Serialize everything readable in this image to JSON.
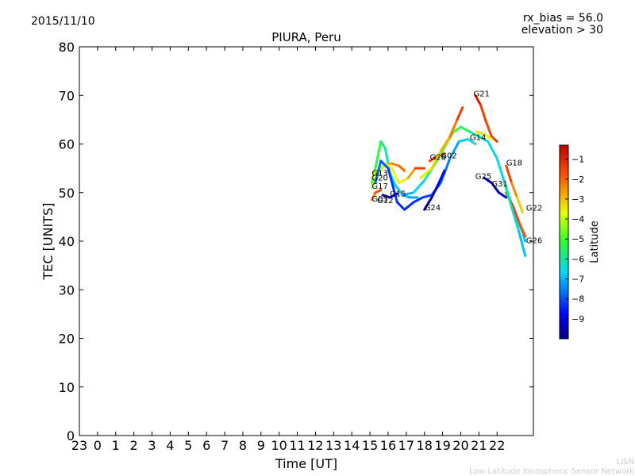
{
  "header": {
    "date": "2015/11/10",
    "rx_bias": "rx_bias = 56.0",
    "elevation": "elevation > 30"
  },
  "footer": {
    "line1": "LISN",
    "line2": "Low-Latitude Ionospheric Sensor Network"
  },
  "chart_data": {
    "type": "line",
    "title": "PIURA, Peru",
    "xlabel": "Time [UT]",
    "ylabel": "TEC [UNITS]",
    "x_ticks": [
      "23",
      "0",
      "1",
      "2",
      "3",
      "4",
      "5",
      "6",
      "7",
      "8",
      "9",
      "10",
      "11",
      "12",
      "13",
      "14",
      "15",
      "16",
      "17",
      "18",
      "19",
      "20",
      "21",
      "22"
    ],
    "xlim": [
      -1,
      24
    ],
    "ylim": [
      0,
      80
    ],
    "y_ticks": [
      0,
      10,
      20,
      30,
      40,
      50,
      60,
      70,
      80
    ],
    "colorbar": {
      "label": "Latitude",
      "range": [
        -10,
        -0.3
      ],
      "ticks": [
        -1,
        -2,
        -3,
        -4,
        -5,
        -6,
        -7,
        -8,
        -9
      ]
    },
    "series": [
      {
        "name": "G13",
        "points": [
          [
            15.1,
            52
          ],
          [
            15.3,
            55
          ],
          [
            15.6,
            60.5
          ],
          [
            15.85,
            59
          ],
          [
            16.1,
            54
          ],
          [
            16.4,
            51.5
          ],
          [
            16.8,
            49.5
          ],
          [
            17.2,
            49
          ],
          [
            17.6,
            49
          ]
        ],
        "lat": [
          -4.5,
          -5,
          -5.5,
          -6,
          -6.3,
          -6.6,
          -6.9,
          -7.1,
          -7.2
        ]
      },
      {
        "name": "G20",
        "points": [
          [
            15.1,
            53
          ],
          [
            15.4,
            54.5
          ],
          [
            15.8,
            55.5
          ],
          [
            16.2,
            56
          ],
          [
            16.6,
            55.5
          ],
          [
            16.9,
            54.5
          ]
        ],
        "lat": [
          -3.8,
          -3.4,
          -3,
          -2.6,
          -2.2,
          -1.9
        ]
      },
      {
        "name": "G17",
        "points": [
          [
            15.1,
            51
          ],
          [
            15.5,
            54
          ],
          [
            15.8,
            56
          ],
          [
            16.2,
            55
          ],
          [
            16.6,
            52
          ],
          [
            17.1,
            53
          ],
          [
            17.5,
            55
          ],
          [
            18,
            55
          ]
        ],
        "lat": [
          -4.4,
          -4.1,
          -3.8,
          -3.6,
          -3.8,
          -3.3,
          -2,
          -1
        ]
      },
      {
        "name": "G05",
        "points": [
          [
            15.1,
            48.5
          ],
          [
            15.3,
            50
          ],
          [
            15.6,
            50.5
          ]
        ],
        "lat": [
          -2.8,
          -2,
          -1.3
        ]
      },
      {
        "name": "G12",
        "points": [
          [
            15.3,
            52
          ],
          [
            15.6,
            56.5
          ],
          [
            16,
            55
          ],
          [
            16.5,
            48
          ],
          [
            16.9,
            46.5
          ],
          [
            17.4,
            48
          ],
          [
            17.9,
            49
          ],
          [
            18.4,
            49.5
          ],
          [
            18.9,
            52
          ],
          [
            19.4,
            57
          ],
          [
            19.9,
            60.5
          ],
          [
            20.4,
            61
          ],
          [
            20.8,
            60
          ]
        ],
        "lat": [
          -7.6,
          -7.8,
          -8.1,
          -8.3,
          -8.4,
          -8.3,
          -8.2,
          -8.1,
          -7.8,
          -7.4,
          -7,
          -6.6,
          -6.2
        ]
      },
      {
        "name": "G15",
        "points": [
          [
            15.7,
            49.5
          ],
          [
            16.1,
            49
          ],
          [
            16.5,
            49.8
          ]
        ],
        "lat": [
          -9.5,
          -9.4,
          -9.3
        ]
      },
      {
        "name": "G24",
        "points": [
          [
            18,
            46.5
          ],
          [
            18.4,
            49
          ],
          [
            18.8,
            52
          ],
          [
            19.1,
            54.5
          ]
        ],
        "lat": [
          -9.7,
          -9.4,
          -9.1,
          -8.8
        ]
      },
      {
        "name": "G28",
        "points": [
          [
            18.3,
            56.5
          ],
          [
            18.7,
            57.5
          ],
          [
            19.1,
            58
          ]
        ],
        "lat": [
          -1.2,
          -1.6,
          -2
        ]
      },
      {
        "name": "G02",
        "points": [
          [
            16.8,
            49.5
          ],
          [
            17.4,
            50
          ],
          [
            18,
            52.5
          ],
          [
            18.6,
            56
          ],
          [
            19.2,
            60
          ],
          [
            19.6,
            62.5
          ],
          [
            20,
            63.5
          ],
          [
            20.5,
            62.5
          ],
          [
            21,
            61.5
          ],
          [
            21.5,
            60.5
          ],
          [
            22,
            57
          ],
          [
            22.5,
            51
          ],
          [
            23,
            45
          ],
          [
            23.4,
            42
          ],
          [
            23.55,
            40
          ]
        ],
        "lat": [
          -7.2,
          -6.9,
          -6.4,
          -5.5,
          -4.7,
          -4.8,
          -5.3,
          -5.8,
          -6.2,
          -6.4,
          -6.5,
          -6.6,
          -6.8,
          -6.9,
          -7
        ]
      },
      {
        "name": "G14",
        "points": [
          [
            17.8,
            53
          ],
          [
            18.4,
            55
          ],
          [
            18.9,
            58.5
          ],
          [
            19.4,
            61.5
          ],
          [
            19.8,
            65
          ],
          [
            20.1,
            67.5
          ]
        ],
        "lat": [
          -3.6,
          -3.4,
          -3.1,
          -2.6,
          -1.8,
          -1
        ]
      },
      {
        "name": "G21",
        "points": [
          [
            20.8,
            70
          ],
          [
            21.1,
            68
          ],
          [
            21.4,
            64.5
          ],
          [
            21.7,
            61.5
          ],
          [
            22,
            60.5
          ]
        ],
        "lat": [
          -0.6,
          -1.1,
          -1.8,
          -1.5,
          -1.2
        ]
      },
      {
        "name": "G25",
        "points": [
          [
            20.9,
            62.5
          ],
          [
            21.3,
            62
          ],
          [
            21.7,
            61
          ]
        ],
        "lat": [
          -3.2,
          -3.5,
          -3.8
        ]
      },
      {
        "name": "G31",
        "points": [
          [
            21.3,
            53
          ],
          [
            21.7,
            52
          ],
          [
            22.1,
            50
          ],
          [
            22.5,
            49
          ]
        ],
        "lat": [
          -9.8,
          -9.6,
          -9.3,
          -9
        ]
      },
      {
        "name": "G18",
        "points": [
          [
            22.5,
            55.5
          ],
          [
            22.8,
            52
          ],
          [
            23.1,
            49
          ],
          [
            23.4,
            46
          ]
        ],
        "lat": [
          -1.1,
          -2,
          -2.8,
          -3.5
        ]
      },
      {
        "name": "G22",
        "points": [
          [
            22.5,
            50
          ],
          [
            22.9,
            47
          ],
          [
            23.2,
            44
          ],
          [
            23.55,
            41
          ]
        ],
        "lat": [
          -0.9,
          -1.4,
          -1.7,
          -2
        ]
      },
      {
        "name": "G26",
        "points": [
          [
            22.4,
            52
          ],
          [
            22.8,
            47
          ],
          [
            23.2,
            42
          ],
          [
            23.55,
            37
          ]
        ],
        "lat": [
          -5.8,
          -6.2,
          -6.6,
          -7.2
        ]
      }
    ],
    "series_labels": [
      {
        "name": "G13",
        "x": 15.1,
        "y": 53.5
      },
      {
        "name": "G20",
        "x": 15.1,
        "y": 52.5
      },
      {
        "name": "G17",
        "x": 15.1,
        "y": 50.8
      },
      {
        "name": "G05",
        "x": 15.1,
        "y": 48.2
      },
      {
        "name": "G12",
        "x": 15.4,
        "y": 47.8
      },
      {
        "name": "G15",
        "x": 16.1,
        "y": 49.2
      },
      {
        "name": "G24",
        "x": 18.0,
        "y": 46.4
      },
      {
        "name": "G28",
        "x": 18.3,
        "y": 56.7
      },
      {
        "name": "G02",
        "x": 18.9,
        "y": 57.1
      },
      {
        "name": "G14",
        "x": 20.5,
        "y": 60.8
      },
      {
        "name": "G21",
        "x": 20.7,
        "y": 69.8
      },
      {
        "name": "G25",
        "x": 20.8,
        "y": 52.8
      },
      {
        "name": "G31",
        "x": 21.7,
        "y": 51.3
      },
      {
        "name": "G18",
        "x": 22.5,
        "y": 55.6
      },
      {
        "name": "G22",
        "x": 23.6,
        "y": 46.3
      },
      {
        "name": "G26",
        "x": 23.6,
        "y": 39.6
      }
    ]
  }
}
